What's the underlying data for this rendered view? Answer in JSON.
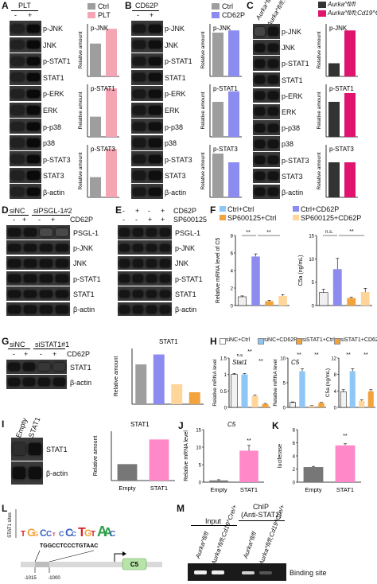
{
  "colors": {
    "ctrl": "#9e9e9e",
    "plt": "#f4a6b5",
    "cd62p": "#8c8cf0",
    "aurka": "#333333",
    "aurka_cd19": "#e0136f",
    "pink": "#ff88c8",
    "orange": "#f3a33d",
    "peach": "#ffd59a",
    "lightblue": "#8ec7f6",
    "sipink": "#ffcbdc"
  },
  "panelA": {
    "label": "A",
    "header": "PLT",
    "lanes": [
      "-",
      "+"
    ],
    "bands": [
      "p-JNK",
      "JNK",
      "p-STAT1",
      "STAT1",
      "p-ERK",
      "ERK",
      "p-p38",
      "p38",
      "p-STAT3",
      "STAT3",
      "β-actin"
    ],
    "legend": [
      "Ctrl",
      "PLT"
    ]
  },
  "panelB": {
    "label": "B",
    "header": "CD62P",
    "lanes": [
      "-",
      "+"
    ],
    "bands": [
      "p-JNK",
      "JNK",
      "p-STAT1",
      "STAT1",
      "p-ERK",
      "ERK",
      "p-p38",
      "p38",
      "p-STAT3",
      "STAT3",
      "β-actin"
    ],
    "legend": [
      "Ctrl",
      "CD62P"
    ]
  },
  "panelC": {
    "label": "C",
    "lanes": [
      "Aurka^fl/fl",
      "Aurka^fl/fl;Cd19^Cre/+"
    ],
    "bands": [
      "p-JNK",
      "JNK",
      "p-STAT1",
      "STAT1",
      "p-ERK",
      "ERK",
      "p-p38",
      "p38",
      "p-STAT3",
      "STAT3",
      "β-actin"
    ],
    "legend": [
      "Aurka^fl/fl",
      "Aurka^fl/fl;Cd19^Cre/+"
    ]
  },
  "panelD": {
    "label": "D",
    "groups": [
      "siNC",
      "siPSGL-1#2"
    ],
    "treatment": "CD62P",
    "lanes": [
      "-",
      "+",
      "-",
      "+"
    ],
    "bands": [
      "PSGL-1",
      "p-JNK",
      "JNK",
      "p-STAT1",
      "STAT1",
      "β-actin"
    ]
  },
  "panelE": {
    "label": "E",
    "treatments": [
      "CD62P",
      "SP600125"
    ],
    "lanes_row1": [
      "-",
      "+",
      "-",
      "+"
    ],
    "lanes_row2": [
      "-",
      "-",
      "+",
      "+"
    ],
    "bands": [
      "PSGL-1",
      "p-JNK",
      "JNK",
      "p-STAT1",
      "STAT1",
      "β-actin"
    ]
  },
  "panelF": {
    "label": "F",
    "legend": [
      "Ctrl+Ctrl",
      "Ctrl+CD62P",
      "SP600125+Ctrl",
      "SP600125+CD62P"
    ],
    "sig": [
      "**",
      "**",
      "n.s.",
      "**"
    ]
  },
  "panelG": {
    "label": "G",
    "groups": [
      "siNC",
      "siSTAT1#1"
    ],
    "treatment": "CD62P",
    "lanes": [
      "-",
      "+",
      "-",
      "+"
    ],
    "bands": [
      "STAT1",
      "β-actin"
    ]
  },
  "panelH": {
    "label": "H",
    "legend": [
      "siNC+Ctrl",
      "siNC+CD62P",
      "siSTAT1+Ctrl",
      "siSTAT1+CD62P"
    ],
    "sig": [
      "**",
      "n.s.",
      "**",
      "**",
      "**",
      "**",
      "**"
    ]
  },
  "panelI": {
    "label": "I",
    "lanes": [
      "Empty",
      "STAT1"
    ],
    "bands": [
      "STAT1",
      "β-actin"
    ]
  },
  "panelJ": {
    "label": "J",
    "sig": "**"
  },
  "panelK": {
    "label": "K",
    "sig": "**"
  },
  "panelL": {
    "label": "L",
    "motif_ylabel": "STAT1 sites",
    "sequence": "TGGCCTCCCTGTAAC",
    "gene": "C5",
    "positions": [
      "-1015",
      "-1000"
    ]
  },
  "panelM": {
    "label": "M",
    "chip_title": "ChIP",
    "chip_sub": "(Anti-STAT1)",
    "input_label": "Input",
    "lanes": [
      "Aurka^fl/fl",
      "Aurka^fl/fl;Cd19^Cre/+",
      "Aurka^fl/fl",
      "Aurka^fl/fl;Cd19^Cre/+"
    ],
    "band_label": "Binding site"
  },
  "chart_data": [
    {
      "id": "A-pJNK",
      "type": "bar",
      "title": "p-JNK",
      "ylabel": "Relative amount",
      "categories": [
        "Ctrl",
        "PLT"
      ],
      "values": [
        1.0,
        1.45
      ],
      "ylim": [
        0,
        1.6
      ]
    },
    {
      "id": "A-pSTAT1",
      "type": "bar",
      "title": "p-STAT1",
      "ylabel": "Relative amount",
      "categories": [
        "Ctrl",
        "PLT"
      ],
      "values": [
        1.0,
        2.4
      ],
      "ylim": [
        0,
        2.6
      ]
    },
    {
      "id": "A-pSTAT3",
      "type": "bar",
      "title": "p-STAT3",
      "ylabel": "Relative amount",
      "categories": [
        "Ctrl",
        "PLT"
      ],
      "values": [
        1.0,
        2.4
      ],
      "ylim": [
        0,
        2.6
      ]
    },
    {
      "id": "B-pJNK",
      "type": "bar",
      "title": "p-JNK",
      "ylabel": "Relative amount",
      "categories": [
        "Ctrl",
        "CD62P"
      ],
      "values": [
        1.0,
        1.05
      ],
      "ylim": [
        0,
        1.2
      ]
    },
    {
      "id": "B-pSTAT1",
      "type": "bar",
      "title": "p-STAT1",
      "ylabel": "Relative amount",
      "categories": [
        "Ctrl",
        "CD62P"
      ],
      "values": [
        1.0,
        1.3
      ],
      "ylim": [
        0,
        1.5
      ]
    },
    {
      "id": "B-pSTAT3",
      "type": "bar",
      "title": "p-STAT3",
      "ylabel": "Relative amount",
      "categories": [
        "Ctrl",
        "CD62P"
      ],
      "values": [
        1.0,
        0.8
      ],
      "ylim": [
        0,
        1.2
      ]
    },
    {
      "id": "C-pJNK",
      "type": "bar",
      "title": "p-JNK",
      "ylabel": "Relative amount",
      "categories": [
        "Aurka^fl/fl",
        "Aurka^fl/fl;Cd19^Cre/+"
      ],
      "values": [
        1.0,
        3.5
      ],
      "ylim": [
        0,
        4
      ]
    },
    {
      "id": "C-pSTAT1",
      "type": "bar",
      "title": "p-STAT1",
      "ylabel": "Relative amount",
      "categories": [
        "Aurka^fl/fl",
        "Aurka^fl/fl;Cd19^Cre/+"
      ],
      "values": [
        1.0,
        1.25
      ],
      "ylim": [
        0,
        1.5
      ]
    },
    {
      "id": "C-pSTAT3",
      "type": "bar",
      "title": "p-STAT3",
      "ylabel": "Relative amount",
      "categories": [
        "Aurka^fl/fl",
        "Aurka^fl/fl;Cd19^Cre/+"
      ],
      "values": [
        1.0,
        1.0
      ],
      "ylim": [
        0,
        1.5
      ]
    },
    {
      "id": "F-C5",
      "type": "bar",
      "ylabel": "Relative mRNA level of C5",
      "categories": [
        "Ctrl+Ctrl",
        "Ctrl+CD62P",
        "SP600125+Ctrl",
        "SP600125+CD62P"
      ],
      "values": [
        1.0,
        5.6,
        0.5,
        1.1
      ],
      "errors": [
        0.1,
        0.3,
        0.1,
        0.15
      ],
      "ylim": [
        0,
        8
      ],
      "ticks": [
        0,
        2,
        4,
        6,
        8
      ]
    },
    {
      "id": "F-C5a",
      "type": "bar",
      "ylabel": "C5a (ng/mL)",
      "categories": [
        "Ctrl+Ctrl",
        "Ctrl+CD62P",
        "SP600125+Ctrl",
        "SP600125+CD62P"
      ],
      "values": [
        2.8,
        7.8,
        1.6,
        2.9
      ],
      "errors": [
        0.7,
        2.3,
        0.2,
        0.8
      ],
      "ylim": [
        0,
        15
      ],
      "ticks": [
        0,
        5,
        10,
        15
      ]
    },
    {
      "id": "G-STAT1",
      "type": "bar",
      "title": "STAT1",
      "ylabel": "Relative amount",
      "categories": [
        "siNC-",
        "siNC+",
        "siSTAT1-",
        "siSTAT1+"
      ],
      "values": [
        1.0,
        1.25,
        0.5,
        0.3
      ],
      "ylim": [
        0,
        1.4
      ]
    },
    {
      "id": "H-Stat1",
      "type": "bar",
      "title": "Stat1",
      "ylabel": "Relative mRNA level",
      "categories": [
        "siNC+Ctrl",
        "siNC+CD62P",
        "siSTAT1+Ctrl",
        "siSTAT1+CD62P"
      ],
      "values": [
        1.0,
        1.0,
        0.35,
        0.1
      ],
      "errors": [
        0.03,
        0.03,
        0.03,
        0.02
      ],
      "ylim": [
        0,
        1.5
      ],
      "ticks": [
        0.0,
        0.5,
        1.0,
        1.5
      ]
    },
    {
      "id": "H-C5",
      "type": "bar",
      "title": "C5",
      "ylabel": "Relative mRNA level",
      "categories": [
        "siNC+Ctrl",
        "siNC+CD62P",
        "siSTAT1+Ctrl",
        "siSTAT1+CD62P"
      ],
      "values": [
        1.0,
        7.3,
        0.3,
        0.9
      ],
      "errors": [
        0.1,
        0.5,
        0.05,
        0.1
      ],
      "ylim": [
        0,
        10
      ],
      "ticks": [
        0,
        5,
        10
      ]
    },
    {
      "id": "H-C5a",
      "type": "bar",
      "ylabel": "C5a (ng/mL)",
      "categories": [
        "siNC+Ctrl",
        "siNC+CD62P",
        "siSTAT1+Ctrl",
        "siSTAT1+CD62P"
      ],
      "values": [
        3.8,
        8.8,
        1.6,
        3.9
      ],
      "errors": [
        0.5,
        0.6,
        0.2,
        0.4
      ],
      "ylim": [
        0,
        12
      ],
      "ticks": [
        0,
        4,
        8,
        12
      ]
    },
    {
      "id": "I-STAT1",
      "type": "bar",
      "title": "STAT1",
      "ylabel": "Relative amount",
      "categories": [
        "Empty",
        "STAT1"
      ],
      "values": [
        1.0,
        2.5
      ],
      "ylim": [
        0,
        3
      ]
    },
    {
      "id": "J-C5",
      "type": "bar",
      "title": "C5",
      "ylabel": "Relative mRNA level",
      "categories": [
        "Empty",
        "STAT1"
      ],
      "values": [
        0.5,
        9.0
      ],
      "errors": [
        0.2,
        1.5
      ],
      "ylim": [
        0,
        15
      ],
      "ticks": [
        0,
        5,
        10,
        15
      ]
    },
    {
      "id": "K-luc",
      "type": "bar",
      "ylabel": "luciferase",
      "categories": [
        "Empty",
        "STAT1"
      ],
      "values": [
        2.3,
        5.6
      ],
      "errors": [
        0.1,
        0.25
      ],
      "ylim": [
        0,
        8
      ],
      "ticks": [
        0,
        2,
        4,
        6,
        8
      ]
    }
  ]
}
